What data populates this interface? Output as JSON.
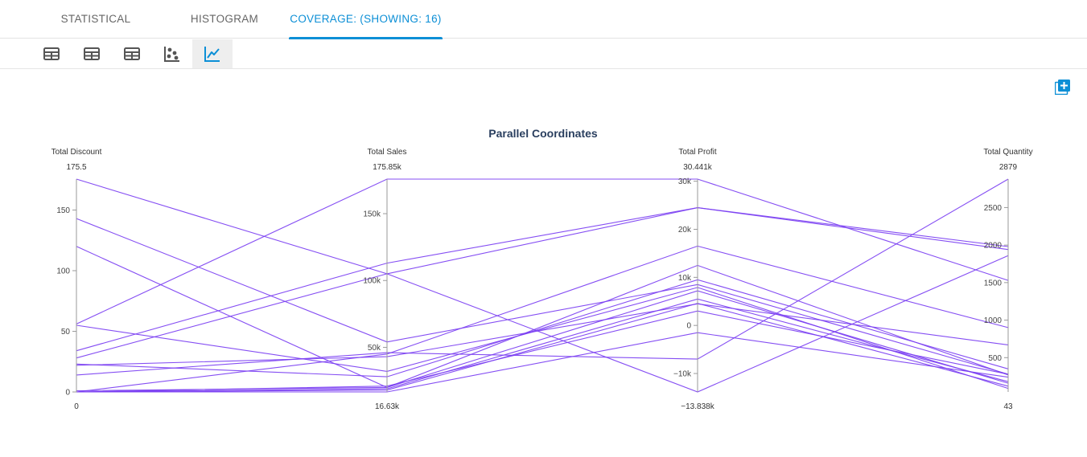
{
  "tabs": [
    {
      "label": "STATISTICAL",
      "active": false
    },
    {
      "label": "HISTOGRAM",
      "active": false
    },
    {
      "label": "COVERAGE: (SHOWING: 16)",
      "active": true
    }
  ],
  "toolbar": {
    "buttons": [
      {
        "icon": "table-icon",
        "active": false
      },
      {
        "icon": "table-icon",
        "active": false
      },
      {
        "icon": "table-icon",
        "active": false
      },
      {
        "icon": "scatter-plot-icon",
        "active": false
      },
      {
        "icon": "line-chart-icon",
        "active": true
      }
    ]
  },
  "add_button": {
    "icon": "add-box-icon"
  },
  "colors": {
    "accent": "#0c8fd6",
    "line": "#7b3ff2",
    "axis": "#9a9a9a"
  },
  "chart_data": {
    "type": "parallel_coordinates",
    "title": "Parallel Coordinates",
    "dimensions": [
      {
        "label": "Total Discount",
        "min": 0,
        "max": 175.5,
        "min_label": "0",
        "max_label": "175.5",
        "ticks": [
          {
            "v": 0,
            "t": "0"
          },
          {
            "v": 50,
            "t": "50"
          },
          {
            "v": 100,
            "t": "100"
          },
          {
            "v": 150,
            "t": "150"
          }
        ]
      },
      {
        "label": "Total Sales",
        "min": 16630,
        "max": 175850,
        "min_label": "16.63k",
        "max_label": "175.85k",
        "ticks": [
          {
            "v": 50000,
            "t": "50k"
          },
          {
            "v": 100000,
            "t": "100k"
          },
          {
            "v": 150000,
            "t": "150k"
          }
        ]
      },
      {
        "label": "Total Profit",
        "min": -13838,
        "max": 30441,
        "min_label": "−13.838k",
        "max_label": "30.441k",
        "ticks": [
          {
            "v": -10000,
            "t": "−10k"
          },
          {
            "v": 0,
            "t": "0"
          },
          {
            "v": 10000,
            "t": "10k"
          },
          {
            "v": 20000,
            "t": "20k"
          },
          {
            "v": 30000,
            "t": "30k"
          }
        ]
      },
      {
        "label": "Total Quantity",
        "min": 43,
        "max": 2879,
        "min_label": "43",
        "max_label": "2879",
        "ticks": [
          {
            "v": 500,
            "t": "500"
          },
          {
            "v": 1000,
            "t": "1000"
          },
          {
            "v": 1500,
            "t": "1500"
          },
          {
            "v": 2000,
            "t": "2000"
          },
          {
            "v": 2500,
            "t": "2500"
          }
        ]
      }
    ],
    "rows": [
      [
        175.5,
        105000,
        -13838,
        1860
      ],
      [
        143,
        54000,
        8500,
        280
      ],
      [
        120,
        20000,
        7200,
        160
      ],
      [
        56,
        175850,
        30441,
        1530
      ],
      [
        55,
        32000,
        7900,
        90
      ],
      [
        34,
        113000,
        24500,
        1940
      ],
      [
        28,
        105000,
        24500,
        1980
      ],
      [
        23,
        28000,
        9500,
        350
      ],
      [
        22,
        43000,
        4500,
        670
      ],
      [
        14,
        46000,
        -7000,
        2879
      ],
      [
        1,
        20000,
        12500,
        270
      ],
      [
        0,
        19000,
        5500,
        180
      ],
      [
        0,
        18000,
        4600,
        120
      ],
      [
        0,
        16630,
        -1500,
        240
      ],
      [
        0,
        45000,
        16500,
        900
      ],
      [
        0,
        21000,
        3000,
        280
      ]
    ]
  }
}
